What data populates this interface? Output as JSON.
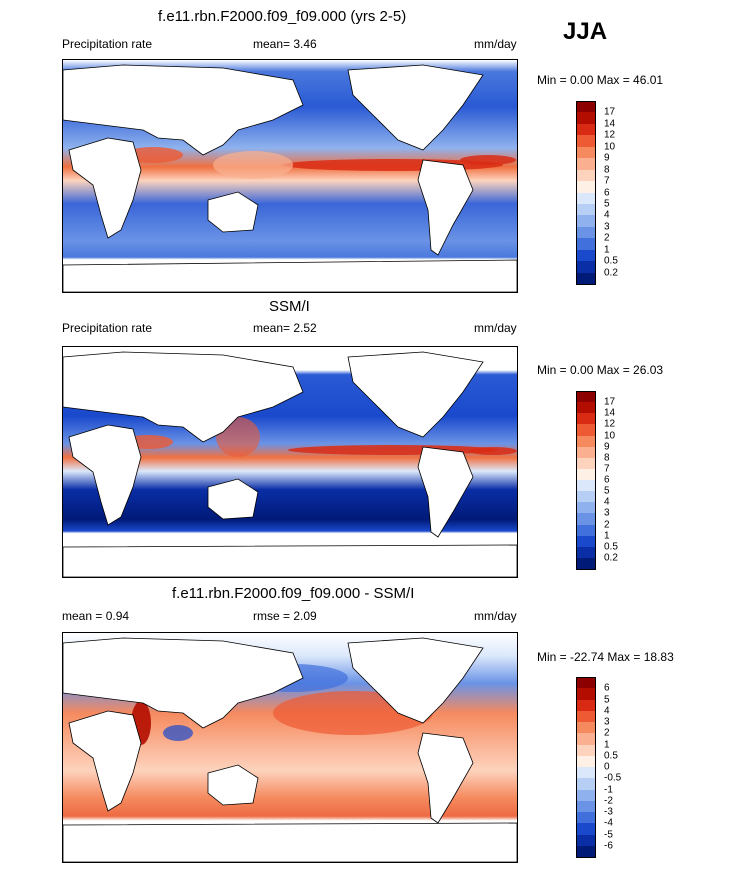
{
  "season": "JJA",
  "panels": [
    {
      "title": "f.e11.rbn.F2000.f09_f09.000 (yrs 2-5)",
      "left_label": "Precipitation rate",
      "center_label": "mean=   3.46",
      "right_label": "mm/day",
      "minmax": "Min =    0.00 Max =  46.01",
      "colorbar": {
        "labels": [
          "17",
          "14",
          "12",
          "10",
          "9",
          "8",
          "7",
          "6",
          "5",
          "4",
          "3",
          "2",
          "1",
          "0.5",
          "0.2"
        ],
        "colors": [
          "#8c0000",
          "#b30d00",
          "#d92b14",
          "#ee5a33",
          "#f58a5f",
          "#fab090",
          "#fdd3bd",
          "#fff0e6",
          "#dbe8fb",
          "#b7cff5",
          "#8fb2ee",
          "#6a93e6",
          "#4170dd",
          "#1a49cc",
          "#0a2ea6",
          "#001a78"
        ]
      }
    },
    {
      "title": "SSM/I",
      "left_label": "Precipitation rate",
      "center_label": "mean=   2.52",
      "right_label": "mm/day",
      "minmax": "Min =    0.00 Max =  26.03",
      "colorbar": {
        "labels": [
          "17",
          "14",
          "12",
          "10",
          "9",
          "8",
          "7",
          "6",
          "5",
          "4",
          "3",
          "2",
          "1",
          "0.5",
          "0.2"
        ],
        "colors": [
          "#8c0000",
          "#b30d00",
          "#d92b14",
          "#ee5a33",
          "#f58a5f",
          "#fab090",
          "#fdd3bd",
          "#fff0e6",
          "#dbe8fb",
          "#b7cff5",
          "#8fb2ee",
          "#6a93e6",
          "#4170dd",
          "#1a49cc",
          "#0a2ea6",
          "#001a78"
        ]
      }
    },
    {
      "title": "f.e11.rbn.F2000.f09_f09.000 - SSM/I",
      "left_label": "mean =   0.94",
      "center_label": "rmse =   2.09",
      "right_label": "mm/day",
      "minmax": "Min = -22.74 Max =  18.83",
      "colorbar": {
        "labels": [
          "6",
          "5",
          "4",
          "3",
          "2",
          "1",
          "0.5",
          "0",
          "-0.5",
          "-1",
          "-2",
          "-3",
          "-4",
          "-5",
          "-6"
        ],
        "colors": [
          "#8c0000",
          "#b30d00",
          "#d92b14",
          "#ee5a33",
          "#f58a5f",
          "#fab090",
          "#fdd3bd",
          "#fff0e6",
          "#dbe8fb",
          "#b7cff5",
          "#8fb2ee",
          "#6a93e6",
          "#4170dd",
          "#1a49cc",
          "#0a2ea6",
          "#001a78"
        ]
      }
    }
  ],
  "chart_data": [
    {
      "type": "heatmap",
      "title": "f.e11.rbn.F2000.f09_f09.000 (yrs 2-5)",
      "variable": "Precipitation rate",
      "units": "mm/day",
      "mean": 3.46,
      "min": 0.0,
      "max": 46.01,
      "levels": [
        0.2,
        0.5,
        1,
        2,
        3,
        4,
        5,
        6,
        7,
        8,
        9,
        10,
        12,
        14,
        17
      ]
    },
    {
      "type": "heatmap",
      "title": "SSM/I",
      "variable": "Precipitation rate",
      "units": "mm/day",
      "mean": 2.52,
      "min": 0.0,
      "max": 26.03,
      "levels": [
        0.2,
        0.5,
        1,
        2,
        3,
        4,
        5,
        6,
        7,
        8,
        9,
        10,
        12,
        14,
        17
      ]
    },
    {
      "type": "heatmap",
      "title": "f.e11.rbn.F2000.f09_f09.000 - SSM/I",
      "units": "mm/day",
      "mean": 0.94,
      "rmse": 2.09,
      "min": -22.74,
      "max": 18.83,
      "levels": [
        -6,
        -5,
        -4,
        -3,
        -2,
        -1,
        -0.5,
        0,
        0.5,
        1,
        2,
        3,
        4,
        5,
        6
      ]
    }
  ]
}
